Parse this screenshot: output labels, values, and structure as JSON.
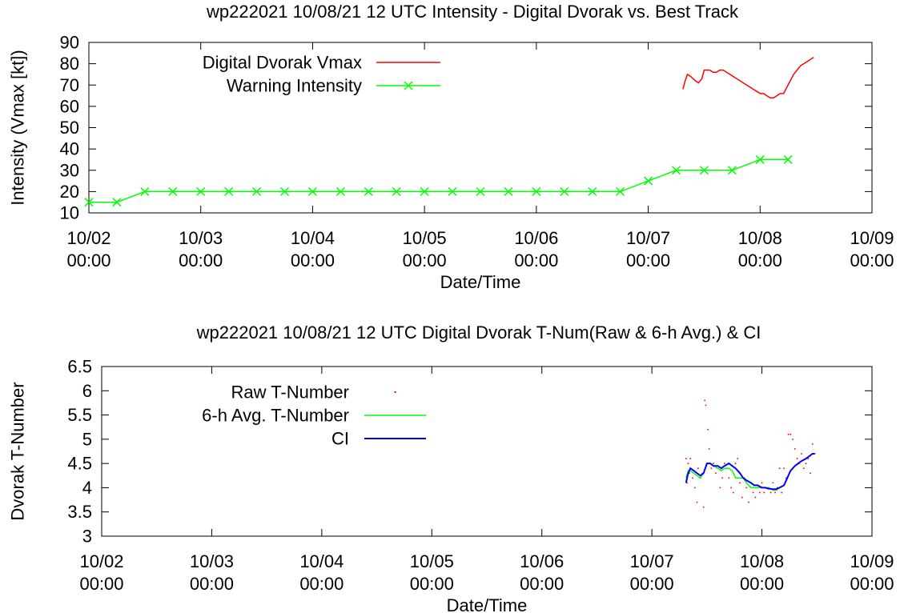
{
  "colors": {
    "vmax": "#ff0000",
    "warning": "#00ff00",
    "raw": "#ff0000",
    "avg": "#00ff00",
    "ci": "#0000ff",
    "axis": "#000000"
  },
  "chart_data": [
    {
      "type": "line",
      "title": "wp222021 10/08/21  12 UTC Intensity - Digital Dvorak vs. Best Track",
      "xlabel": "Date/Time",
      "ylabel": "Intensity (Vmax [kt])",
      "xlim": [
        0,
        7
      ],
      "ylim": [
        10,
        90
      ],
      "yticks": [
        10,
        20,
        30,
        40,
        50,
        60,
        70,
        80,
        90
      ],
      "xticks": [
        {
          "x": 0,
          "date": "10/02",
          "time": "00:00"
        },
        {
          "x": 1,
          "date": "10/03",
          "time": "00:00"
        },
        {
          "x": 2,
          "date": "10/04",
          "time": "00:00"
        },
        {
          "x": 3,
          "date": "10/05",
          "time": "00:00"
        },
        {
          "x": 4,
          "date": "10/06",
          "time": "00:00"
        },
        {
          "x": 5,
          "date": "10/07",
          "time": "00:00"
        },
        {
          "x": 6,
          "date": "10/08",
          "time": "00:00"
        },
        {
          "x": 7,
          "date": "10/09",
          "time": "00:00"
        }
      ],
      "legend_position": "top-left",
      "series": [
        {
          "name": "Digital Dvorak Vmax",
          "style": "line",
          "color": "#ff0000",
          "x": [
            5.31,
            5.33,
            5.35,
            5.38,
            5.42,
            5.45,
            5.48,
            5.5,
            5.52,
            5.55,
            5.58,
            5.61,
            5.64,
            5.67,
            5.7,
            5.73,
            5.76,
            5.79,
            5.82,
            5.85,
            5.88,
            5.91,
            5.94,
            5.97,
            6.0,
            6.03,
            6.06,
            6.09,
            6.12,
            6.15,
            6.18,
            6.21,
            6.24,
            6.27,
            6.3,
            6.33,
            6.36,
            6.39,
            6.42,
            6.45,
            6.48
          ],
          "y": [
            68,
            72,
            75,
            74,
            72,
            71,
            73,
            77,
            77,
            77,
            76,
            76,
            77,
            77,
            76,
            75,
            74,
            73,
            72,
            71,
            70,
            69,
            68,
            67,
            66,
            66,
            65,
            64,
            64,
            65,
            66,
            66,
            69,
            72,
            75,
            77,
            79,
            80,
            81,
            82,
            83
          ]
        },
        {
          "name": "Warning Intensity",
          "style": "linespoints",
          "color": "#00ff00",
          "x": [
            0.0,
            0.25,
            0.5,
            0.75,
            1.0,
            1.25,
            1.5,
            1.75,
            2.0,
            2.25,
            2.5,
            2.75,
            3.0,
            3.25,
            3.5,
            3.75,
            4.0,
            4.25,
            4.5,
            4.75,
            5.0,
            5.25,
            5.5,
            5.75,
            6.0,
            6.25
          ],
          "y": [
            15,
            15,
            20,
            20,
            20,
            20,
            20,
            20,
            20,
            20,
            20,
            20,
            20,
            20,
            20,
            20,
            20,
            20,
            20,
            20,
            25,
            30,
            30,
            30,
            35,
            35
          ]
        }
      ]
    },
    {
      "type": "line",
      "title": "wp222021 10/08/21  12 UTC Digital Dvorak T-Num(Raw & 6-h Avg.) & CI",
      "xlabel": "Date/Time",
      "ylabel": "Dvorak T-Number",
      "xlim": [
        0,
        7
      ],
      "ylim": [
        3,
        6.5
      ],
      "yticks": [
        3,
        3.5,
        4,
        4.5,
        5,
        5.5,
        6,
        6.5
      ],
      "xticks": [
        {
          "x": 0,
          "date": "10/02",
          "time": "00:00"
        },
        {
          "x": 1,
          "date": "10/03",
          "time": "00:00"
        },
        {
          "x": 2,
          "date": "10/04",
          "time": "00:00"
        },
        {
          "x": 3,
          "date": "10/05",
          "time": "00:00"
        },
        {
          "x": 4,
          "date": "10/06",
          "time": "00:00"
        },
        {
          "x": 5,
          "date": "10/07",
          "time": "00:00"
        },
        {
          "x": 6,
          "date": "10/08",
          "time": "00:00"
        },
        {
          "x": 7,
          "date": "10/09",
          "time": "00:00"
        }
      ],
      "legend_position": "top-left",
      "series": [
        {
          "name": "Raw T-Number",
          "style": "dots",
          "color": "#ff0000",
          "x": [
            5.31,
            5.32,
            5.33,
            5.34,
            5.35,
            5.37,
            5.39,
            5.41,
            5.42,
            5.44,
            5.46,
            5.47,
            5.48,
            5.49,
            5.5,
            5.51,
            5.52,
            5.54,
            5.56,
            5.58,
            5.6,
            5.62,
            5.64,
            5.66,
            5.68,
            5.7,
            5.72,
            5.74,
            5.76,
            5.78,
            5.8,
            5.82,
            5.84,
            5.86,
            5.88,
            5.9,
            5.92,
            5.94,
            5.96,
            5.98,
            6.0,
            6.02,
            6.04,
            6.06,
            6.08,
            6.1,
            6.12,
            6.14,
            6.16,
            6.18,
            6.2,
            6.22,
            6.24,
            6.26,
            6.28,
            6.3,
            6.32,
            6.34,
            6.36,
            6.38,
            6.4,
            6.42,
            6.44,
            6.46,
            6.48
          ],
          "y": [
            4.6,
            4.1,
            4.5,
            4.3,
            4.6,
            4.2,
            4.0,
            3.7,
            4.4,
            4.2,
            4.3,
            3.6,
            5.8,
            5.7,
            4.5,
            5.2,
            4.8,
            4.4,
            4.5,
            4.3,
            4.4,
            4.0,
            4.2,
            4.5,
            4.4,
            4.2,
            4.0,
            3.9,
            4.5,
            4.6,
            4.1,
            3.8,
            4.2,
            4.0,
            3.7,
            4.1,
            3.9,
            3.8,
            4.0,
            3.9,
            4.1,
            3.9,
            4.0,
            4.0,
            3.9,
            4.1,
            3.9,
            4.0,
            4.4,
            3.9,
            4.4,
            4.2,
            5.1,
            5.1,
            5.0,
            4.8,
            4.6,
            4.5,
            4.7,
            4.4,
            4.5,
            4.6,
            4.3,
            4.9,
            4.7
          ]
        },
        {
          "name": "6-h Avg. T-Number",
          "style": "line",
          "color": "#00ff00",
          "x": [
            5.31,
            5.33,
            5.35,
            5.38,
            5.41,
            5.44,
            5.47,
            5.5,
            5.53,
            5.56,
            5.6,
            5.63,
            5.66,
            5.7,
            5.73,
            5.76,
            5.8,
            5.83,
            5.86,
            5.9,
            5.93,
            5.96,
            6.0,
            6.03,
            6.06,
            6.1,
            6.13,
            6.16,
            6.2,
            6.23,
            6.26,
            6.3,
            6.33,
            6.36,
            6.4,
            6.43,
            6.46,
            6.48
          ],
          "y": [
            4.2,
            4.35,
            4.35,
            4.3,
            4.25,
            4.2,
            4.3,
            4.5,
            4.5,
            4.45,
            4.4,
            4.35,
            4.4,
            4.4,
            4.35,
            4.2,
            4.2,
            4.2,
            4.1,
            4.0,
            4.0,
            4.0,
            4.0,
            4.0,
            4.0,
            3.95,
            3.95,
            4.0,
            4.05,
            4.2,
            4.35,
            4.45,
            4.5,
            4.55,
            4.6,
            4.65,
            4.7,
            4.7
          ]
        },
        {
          "name": "CI",
          "style": "line",
          "color": "#0000ff",
          "x": [
            5.31,
            5.33,
            5.35,
            5.38,
            5.41,
            5.44,
            5.47,
            5.5,
            5.53,
            5.56,
            5.6,
            5.63,
            5.66,
            5.7,
            5.73,
            5.76,
            5.8,
            5.83,
            5.86,
            5.9,
            5.93,
            5.96,
            6.0,
            6.03,
            6.06,
            6.1,
            6.13,
            6.16,
            6.2,
            6.23,
            6.26,
            6.3,
            6.33,
            6.36,
            6.4,
            6.43,
            6.46,
            6.48
          ],
          "y": [
            4.1,
            4.3,
            4.4,
            4.35,
            4.3,
            4.25,
            4.3,
            4.5,
            4.5,
            4.45,
            4.45,
            4.4,
            4.45,
            4.5,
            4.45,
            4.4,
            4.3,
            4.2,
            4.15,
            4.1,
            4.05,
            4.05,
            4.0,
            4.0,
            3.98,
            3.97,
            3.97,
            4.0,
            4.05,
            4.2,
            4.35,
            4.45,
            4.5,
            4.55,
            4.6,
            4.65,
            4.7,
            4.7
          ]
        }
      ]
    }
  ]
}
